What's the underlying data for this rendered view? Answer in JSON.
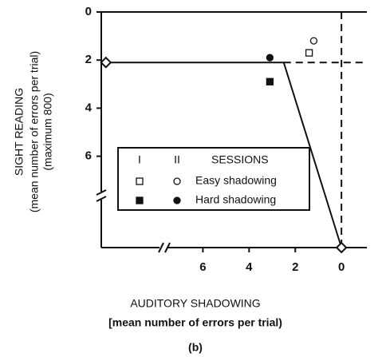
{
  "chart_data": {
    "type": "scatter",
    "ylabel": [
      "SIGHT READING",
      "(mean number of errors per trial)",
      "(maximum   800)"
    ],
    "xlabel": [
      "AUDITORY    SHADOWING",
      "[mean number of errors per trial)"
    ],
    "caption": "(b)",
    "xlim": [
      10.4,
      -1.1
    ],
    "ylim": [
      0,
      9.8
    ],
    "xticks": [
      6,
      4,
      2,
      0
    ],
    "yticks": [
      0,
      2,
      4,
      6
    ],
    "legend": {
      "columns": [
        "I",
        "II"
      ],
      "title": "SESSIONS"
    },
    "markers": [
      "square",
      "circle"
    ],
    "series": [
      {
        "name": "Easy shadowing",
        "fill": "open",
        "color": "#111",
        "x": [
          1.4,
          1.2
        ],
        "y": [
          1.7,
          1.2
        ]
      },
      {
        "name": "Hard shadowing",
        "fill": "filled",
        "color": "#111",
        "x": [
          3.1,
          3.1
        ],
        "y": [
          2.9,
          1.9
        ]
      }
    ],
    "line": {
      "x": [
        10.2,
        2.5,
        0
      ],
      "y": [
        2.1,
        2.1,
        9.8
      ]
    },
    "reference": {
      "x": 0,
      "y": 2.1
    }
  }
}
